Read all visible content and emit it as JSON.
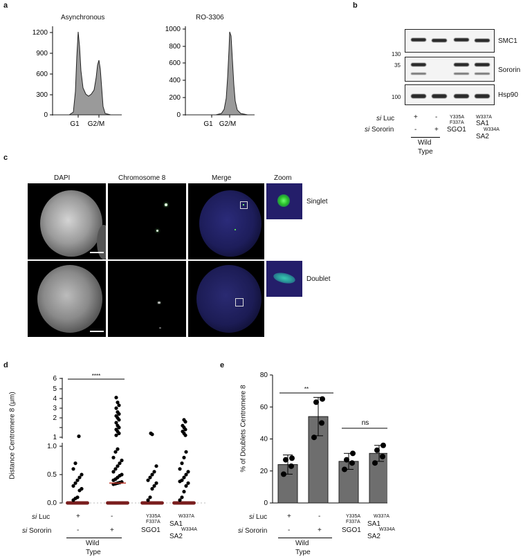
{
  "panel_labels": {
    "a": "a",
    "b": "b",
    "c": "c",
    "d": "d",
    "e": "e"
  },
  "panel_a": {
    "hist1": {
      "title": "Asynchronous",
      "yticks": [
        "1200",
        "900",
        "600",
        "300",
        "0"
      ],
      "xlabels": [
        "G1",
        "G2/M"
      ]
    },
    "hist2": {
      "title": "RO-3306",
      "yticks": [
        "1000",
        "800",
        "600",
        "400",
        "200",
        "0"
      ],
      "xlabels": [
        "G1",
        "G2/M"
      ]
    }
  },
  "panel_b": {
    "markers": {
      "m130": "130",
      "m35": "35",
      "m100": "100"
    },
    "rows": {
      "smc1": "SMC1",
      "sororin": "Sororin",
      "hsp90": "Hsp90"
    },
    "conditions": {
      "si_prefix": "si",
      "luc_label": "Luc",
      "sororin_label": "Sororin",
      "luc_values": [
        "+",
        "-"
      ],
      "sororin_values": [
        "-",
        "+"
      ],
      "mut1_line1": "Y335A",
      "mut1_line2": "F337A",
      "mut1_name": "SGO1",
      "mut2_line1": "W337A",
      "mut2_name1": "SA1",
      "mut2_line2": "W334A",
      "mut2_name2": "SA2",
      "wt_line1": "Wild",
      "wt_line2": "Type"
    }
  },
  "panel_c": {
    "col_headers": {
      "dapi": "DAPI",
      "chr8": "Chromosome 8",
      "merge": "Merge",
      "zoom": "Zoom"
    },
    "row_labels": {
      "singlet": "Singlet",
      "doublet": "Doublet"
    }
  },
  "panel_d": {
    "ylabel": "Distance Centromere 8 (μm)",
    "significance": "****",
    "yticks_upper": [
      "6",
      "5",
      "4",
      "3",
      "2",
      "1"
    ],
    "yticks_lower": [
      "1.0",
      "0.5",
      "0.0"
    ],
    "si_prefix": "si",
    "luc_label": "Luc",
    "sororin_label": "Sororin",
    "luc_values": [
      "+",
      "-"
    ],
    "sororin_values": [
      "-",
      "+"
    ],
    "mut1_line1": "Y335A",
    "mut1_line2": "F337A",
    "mut1_name": "SGO1",
    "mut2_line1": "W337A",
    "mut2_name1": "SA1",
    "mut2_line2": "W334A",
    "mut2_name2": "SA2",
    "wt_line1": "Wild",
    "wt_line2": "Type"
  },
  "panel_e": {
    "ylabel": "% of Doublets Centromere 8",
    "yticks": [
      "80",
      "60",
      "40",
      "20",
      "0"
    ],
    "sig1": "**",
    "sig2": "ns",
    "si_prefix": "si",
    "luc_label": "Luc",
    "sororin_label": "Sororin",
    "luc_values": [
      "+",
      "-"
    ],
    "sororin_values": [
      "-",
      "+"
    ],
    "mut1_line1": "Y335A",
    "mut1_line2": "F337A",
    "mut1_name": "SGO1",
    "mut2_line1": "W337A",
    "mut2_name1": "SA1",
    "mut2_line2": "W334A",
    "mut2_name2": "SA2",
    "wt_line1": "Wild",
    "wt_line2": "Type"
  },
  "chart_data": [
    {
      "type": "area",
      "title": "Asynchronous",
      "ylim": [
        0,
        1250
      ],
      "x_tick_labels": [
        "G1",
        "G2/M"
      ],
      "peaks": [
        {
          "label": "G1",
          "y": 1200
        },
        {
          "label": "G2/M",
          "y": 700
        }
      ]
    },
    {
      "type": "area",
      "title": "RO-3306",
      "ylim": [
        0,
        1000
      ],
      "x_tick_labels": [
        "G1",
        "G2/M"
      ],
      "peaks": [
        {
          "label": "G2/M",
          "y": 970
        }
      ]
    },
    {
      "type": "scatter",
      "ylabel": "Distance Centromere 8 (μm)",
      "categories": [
        "WT siLuc",
        "WT siSororin",
        "SGO1 Y335A F337A",
        "SA1 W337A SA2 W334A"
      ],
      "medians": [
        0,
        0.35,
        0,
        0
      ],
      "max_values": [
        1.1,
        5.1,
        1.4,
        2.8
      ]
    },
    {
      "type": "bar",
      "ylabel": "% of Doublets Centromere 8",
      "ylim": [
        0,
        80
      ],
      "categories": [
        "WT siLuc",
        "WT siSororin",
        "SGO1 Y335A F337A",
        "SA1 W337A SA2 W334A"
      ],
      "values": [
        24,
        54,
        26,
        31
      ],
      "errors": [
        6,
        12,
        5,
        5
      ],
      "points": [
        [
          18,
          23,
          27,
          28
        ],
        [
          41,
          50,
          63,
          65
        ],
        [
          21,
          25,
          27,
          31
        ],
        [
          25,
          29,
          33,
          36
        ]
      ]
    }
  ]
}
